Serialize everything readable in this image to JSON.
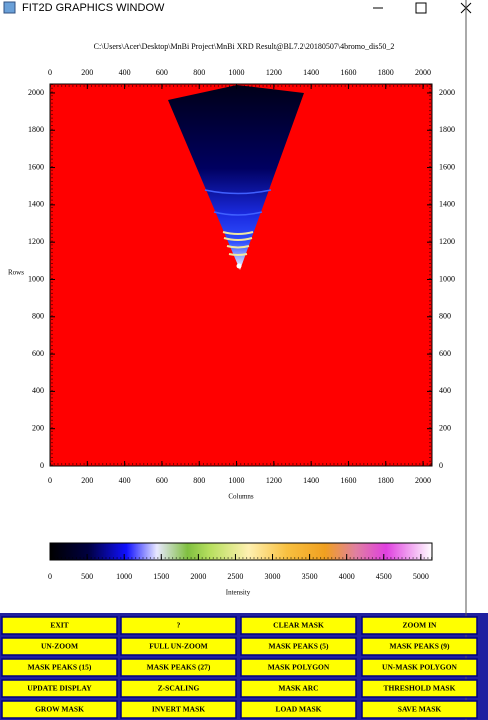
{
  "window": {
    "title": "FIT2D GRAPHICS WINDOW"
  },
  "plot": {
    "title": "C:\\Users\\Acer\\Desktop\\MnBi Project\\MnBi XRD Result@BL7.2\\20180507\\4bromo_dis50_2",
    "xlabel": "Columns",
    "ylabel": "Rows",
    "xlim": [
      0,
      2048
    ],
    "ylim": [
      0,
      2048
    ],
    "xticks": [
      0,
      200,
      400,
      600,
      800,
      1000,
      1200,
      1400,
      1600,
      1800,
      2000
    ],
    "yticks": [
      0,
      200,
      400,
      600,
      800,
      1000,
      1200,
      1400,
      1600,
      1800,
      2000
    ]
  },
  "colorbar": {
    "label": "Intensity",
    "lim": [
      0,
      5150
    ],
    "ticks": [
      0,
      500,
      1000,
      1500,
      2000,
      2500,
      3000,
      3500,
      4000,
      4500,
      5000
    ]
  },
  "buttons": [
    [
      "EXIT",
      "?",
      "CLEAR MASK",
      "ZOOM IN"
    ],
    [
      "UN-ZOOM",
      "FULL UN-ZOOM",
      "MASK PEAKS (5)",
      "MASK PEAKS (9)"
    ],
    [
      "MASK PEAKS (15)",
      "MASK PEAKS (27)",
      "MASK POLYGON",
      "UN-MASK POLYGON"
    ],
    [
      "UPDATE DISPLAY",
      "Z-SCALING",
      "MASK ARC",
      "THRESHOLD MASK"
    ],
    [
      "GROW MASK",
      "INVERT MASK",
      "LOAD MASK",
      "SAVE MASK"
    ]
  ]
}
